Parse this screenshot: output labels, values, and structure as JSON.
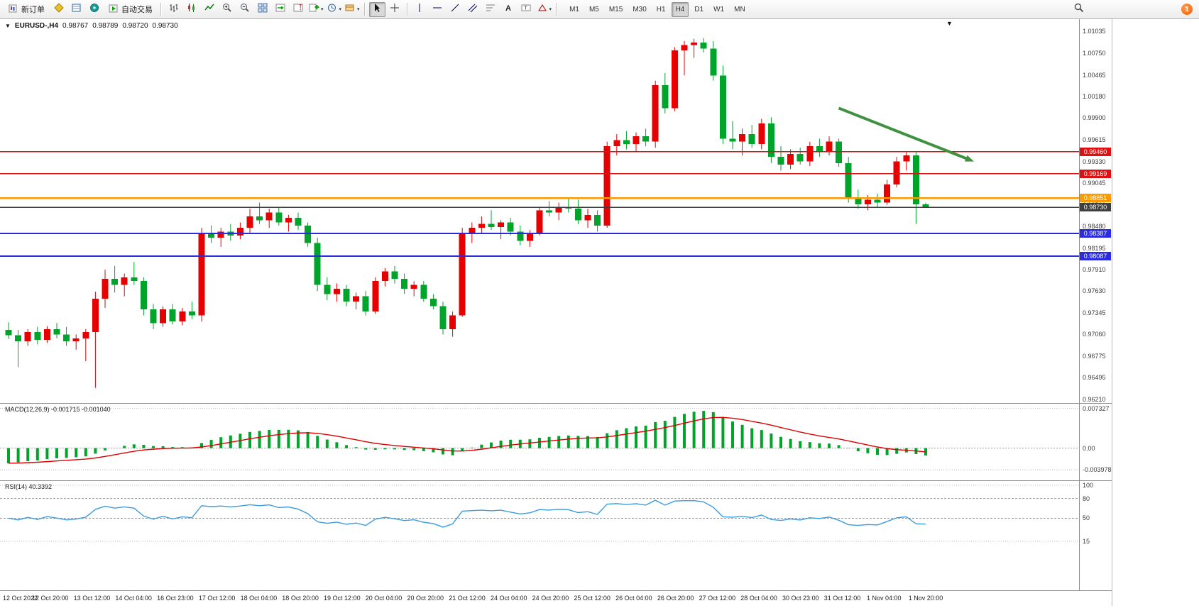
{
  "toolbar": {
    "new_order": "新订单",
    "auto_trading": "自动交易",
    "timeframes": [
      "M1",
      "M5",
      "M15",
      "M30",
      "H1",
      "H4",
      "D1",
      "W1",
      "MN"
    ],
    "active_timeframe": "H4",
    "notification_count": "1"
  },
  "header": {
    "symbol": "EURUSD-,H4",
    "open": "0.98767",
    "high": "0.98789",
    "low": "0.98720",
    "close": "0.98730"
  },
  "panels": {
    "macd_label": "MACD(12,26,9) -0.001715 -0.001040",
    "rsi_label": "RSI(14) 40.3392"
  },
  "chart_data": {
    "type": "candlestick",
    "symbol": "EURUSD",
    "timeframe": "H4",
    "colors": {
      "up": "#e60000",
      "down": "#00a42a",
      "macd_hist": "#00a42a",
      "macd_signal": "#dd0000",
      "rsi_line": "#3b9ce0",
      "arrow": "#3f9140"
    },
    "price_axis": {
      "max": 1.0117,
      "min": 0.9617,
      "ticks": [
        "1.01035",
        "1.00750",
        "1.00465",
        "1.00180",
        "0.99900",
        "0.99615",
        "0.99330",
        "0.99045",
        "0.98760",
        "0.98480",
        "0.98195",
        "0.97910",
        "0.97630",
        "0.97345",
        "0.97060",
        "0.96775",
        "0.96495",
        "0.96210"
      ]
    },
    "levels": [
      {
        "price": 0.9946,
        "label": "0.99460",
        "color": "#dd1111",
        "width": 1.4
      },
      {
        "price": 0.99169,
        "label": "0.99169",
        "color": "#dd1111",
        "width": 1.4
      },
      {
        "price": 0.98851,
        "label": "0.98851",
        "color": "#ff9900",
        "width": 2.6
      },
      {
        "price": 0.9873,
        "label": "0.98730",
        "color": "#3f3f3f",
        "width": 1.6
      },
      {
        "price": 0.98387,
        "label": "0.98387",
        "color": "#2a2ae0",
        "width": 1.8
      },
      {
        "price": 0.98087,
        "label": "0.98087",
        "color": "#2a2ae0",
        "width": 1.8
      }
    ],
    "candles": [
      [
        0.9712,
        0.9722,
        0.97,
        0.9705
      ],
      [
        0.9705,
        0.9712,
        0.9663,
        0.9697
      ],
      [
        0.9697,
        0.9713,
        0.9691,
        0.9709
      ],
      [
        0.9709,
        0.9716,
        0.9693,
        0.9699
      ],
      [
        0.9699,
        0.9717,
        0.9695,
        0.9713
      ],
      [
        0.9713,
        0.9721,
        0.9701,
        0.9706
      ],
      [
        0.9706,
        0.9716,
        0.9691,
        0.9697
      ],
      [
        0.9697,
        0.9706,
        0.9686,
        0.9701
      ],
      [
        0.9701,
        0.9713,
        0.9671,
        0.9709
      ],
      [
        0.9709,
        0.9762,
        0.9636,
        0.9753
      ],
      [
        0.9753,
        0.9791,
        0.9741,
        0.9779
      ],
      [
        0.9779,
        0.9796,
        0.9761,
        0.9771
      ],
      [
        0.9771,
        0.9786,
        0.9756,
        0.9781
      ],
      [
        0.9781,
        0.9801,
        0.9771,
        0.9776
      ],
      [
        0.9776,
        0.9781,
        0.9731,
        0.9739
      ],
      [
        0.9739,
        0.9746,
        0.9713,
        0.9721
      ],
      [
        0.9721,
        0.9743,
        0.9716,
        0.9739
      ],
      [
        0.9739,
        0.9746,
        0.9719,
        0.9723
      ],
      [
        0.9723,
        0.9741,
        0.9718,
        0.9736
      ],
      [
        0.9736,
        0.9749,
        0.9726,
        0.9731
      ],
      [
        0.9731,
        0.9846,
        0.9723,
        0.9839
      ],
      [
        0.9839,
        0.9849,
        0.9826,
        0.9833
      ],
      [
        0.9833,
        0.9846,
        0.9821,
        0.9841
      ],
      [
        0.9841,
        0.9851,
        0.9829,
        0.9836
      ],
      [
        0.9836,
        0.9853,
        0.9831,
        0.9846
      ],
      [
        0.9846,
        0.9871,
        0.9839,
        0.9861
      ],
      [
        0.9861,
        0.9879,
        0.9851,
        0.9856
      ],
      [
        0.9856,
        0.9871,
        0.9846,
        0.9866
      ],
      [
        0.9866,
        0.9873,
        0.9849,
        0.9853
      ],
      [
        0.9853,
        0.9863,
        0.9841,
        0.9859
      ],
      [
        0.9859,
        0.9866,
        0.9843,
        0.9849
      ],
      [
        0.9849,
        0.9853,
        0.9821,
        0.9826
      ],
      [
        0.9826,
        0.9833,
        0.9763,
        0.9771
      ],
      [
        0.9771,
        0.9781,
        0.9751,
        0.9759
      ],
      [
        0.9759,
        0.9773,
        0.9749,
        0.9766
      ],
      [
        0.9766,
        0.9771,
        0.9743,
        0.9749
      ],
      [
        0.9749,
        0.9761,
        0.9739,
        0.9756
      ],
      [
        0.9756,
        0.9763,
        0.9731,
        0.9736
      ],
      [
        0.9736,
        0.9781,
        0.9733,
        0.9776
      ],
      [
        0.9776,
        0.9793,
        0.9769,
        0.9789
      ],
      [
        0.9789,
        0.9796,
        0.9773,
        0.9779
      ],
      [
        0.9779,
        0.9786,
        0.9759,
        0.9766
      ],
      [
        0.9766,
        0.9776,
        0.9756,
        0.9771
      ],
      [
        0.9771,
        0.9776,
        0.9749,
        0.9753
      ],
      [
        0.9753,
        0.9759,
        0.9739,
        0.9743
      ],
      [
        0.9743,
        0.9749,
        0.9706,
        0.9713
      ],
      [
        0.9713,
        0.9736,
        0.9703,
        0.9731
      ],
      [
        0.9731,
        0.9846,
        0.9729,
        0.9839
      ],
      [
        0.9839,
        0.9853,
        0.9826,
        0.9846
      ],
      [
        0.9846,
        0.9861,
        0.9839,
        0.9851
      ],
      [
        0.9851,
        0.9869,
        0.9843,
        0.9847
      ],
      [
        0.9847,
        0.9856,
        0.9831,
        0.9853
      ],
      [
        0.9853,
        0.9859,
        0.9836,
        0.9841
      ],
      [
        0.9841,
        0.9849,
        0.9823,
        0.9829
      ],
      [
        0.9829,
        0.9843,
        0.9821,
        0.9839
      ],
      [
        0.9839,
        0.9873,
        0.9836,
        0.9869
      ],
      [
        0.9869,
        0.9881,
        0.9861,
        0.9866
      ],
      [
        0.9866,
        0.9879,
        0.9856,
        0.9873
      ],
      [
        0.9873,
        0.9886,
        0.9866,
        0.9871
      ],
      [
        0.9871,
        0.9883,
        0.9851,
        0.9856
      ],
      [
        0.9856,
        0.9871,
        0.9846,
        0.9863
      ],
      [
        0.9863,
        0.9869,
        0.9841,
        0.9849
      ],
      [
        0.9849,
        0.9959,
        0.9846,
        0.9953
      ],
      [
        0.9953,
        0.9969,
        0.9941,
        0.9961
      ],
      [
        0.9961,
        0.9973,
        0.9949,
        0.9956
      ],
      [
        0.9956,
        0.9971,
        0.9946,
        0.9966
      ],
      [
        0.9966,
        0.9976,
        0.9953,
        0.9959
      ],
      [
        0.9959,
        1.0039,
        0.9951,
        1.0033
      ],
      [
        1.0033,
        1.0049,
        0.9996,
        1.0003
      ],
      [
        1.0003,
        1.0083,
        0.9999,
        1.0079
      ],
      [
        1.0079,
        1.0091,
        1.0046,
        1.0086
      ],
      [
        1.0086,
        1.0094,
        1.0069,
        1.0089
      ],
      [
        1.0089,
        1.0095,
        1.0076,
        1.0081
      ],
      [
        1.0081,
        1.0091,
        1.0039,
        1.0046
      ],
      [
        1.0046,
        1.0059,
        0.9956,
        0.9963
      ],
      [
        0.9963,
        0.9986,
        0.9949,
        0.9959
      ],
      [
        0.9959,
        0.9976,
        0.9941,
        0.9969
      ],
      [
        0.9969,
        0.9981,
        0.9951,
        0.9956
      ],
      [
        0.9956,
        0.9989,
        0.9949,
        0.9983
      ],
      [
        0.9983,
        0.9991,
        0.9931,
        0.9939
      ],
      [
        0.9939,
        0.9953,
        0.9921,
        0.9929
      ],
      [
        0.9929,
        0.9949,
        0.9923,
        0.9943
      ],
      [
        0.9943,
        0.9951,
        0.9929,
        0.9933
      ],
      [
        0.9933,
        0.9959,
        0.9927,
        0.9953
      ],
      [
        0.9953,
        0.9963,
        0.9939,
        0.9946
      ],
      [
        0.9946,
        0.9966,
        0.9941,
        0.9959
      ],
      [
        0.9959,
        0.9963,
        0.9926,
        0.9931
      ],
      [
        0.9931,
        0.9939,
        0.9879,
        0.9885
      ],
      [
        0.9885,
        0.9896,
        0.9871,
        0.9877
      ],
      [
        0.9877,
        0.9889,
        0.9869,
        0.9883
      ],
      [
        0.9883,
        0.9891,
        0.9873,
        0.9879
      ],
      [
        0.9879,
        0.9909,
        0.9876,
        0.9903
      ],
      [
        0.9903,
        0.9939,
        0.9899,
        0.9933
      ],
      [
        0.9933,
        0.9945,
        0.9921,
        0.9941
      ],
      [
        0.9941,
        0.9946,
        0.9851,
        0.9877
      ],
      [
        0.98767,
        0.98789,
        0.9872,
        0.9873
      ]
    ],
    "macd": {
      "fast": 12,
      "slow": 26,
      "signal": 9,
      "scale_max": 0.0078,
      "scale_min": -0.0058,
      "axis_labels": [
        {
          "text": "0.007327",
          "value": 0.007327
        },
        {
          "text": "0.00",
          "value": 0
        },
        {
          "text": "-0.003978",
          "value": -0.003978
        }
      ]
    },
    "rsi": {
      "period": 14,
      "levels": [
        80,
        50
      ],
      "axis_labels": [
        {
          "text": "100",
          "value": 100
        },
        {
          "text": "80",
          "value": 80
        },
        {
          "text": "50",
          "value": 50
        },
        {
          "text": "15",
          "value": 15
        }
      ]
    },
    "time_axis": [
      "12 Oct 2022",
      "12 Oct 20:00",
      "13 Oct 12:00",
      "14 Oct 04:00",
      "16 Oct 23:00",
      "17 Oct 12:00",
      "18 Oct 04:00",
      "18 Oct 20:00",
      "19 Oct 12:00",
      "20 Oct 04:00",
      "20 Oct 20:00",
      "21 Oct 12:00",
      "24 Oct 04:00",
      "24 Oct 20:00",
      "25 Oct 12:00",
      "26 Oct 04:00",
      "26 Oct 20:00",
      "27 Oct 12:00",
      "28 Oct 04:00",
      "30 Oct 23:00",
      "31 Oct 12:00",
      "1 Nov 04:00",
      "1 Nov 20:00"
    ],
    "arrow": {
      "from_index": 86,
      "from_price": 1.0003,
      "to_index": 100,
      "to_price": 0.9933
    }
  }
}
